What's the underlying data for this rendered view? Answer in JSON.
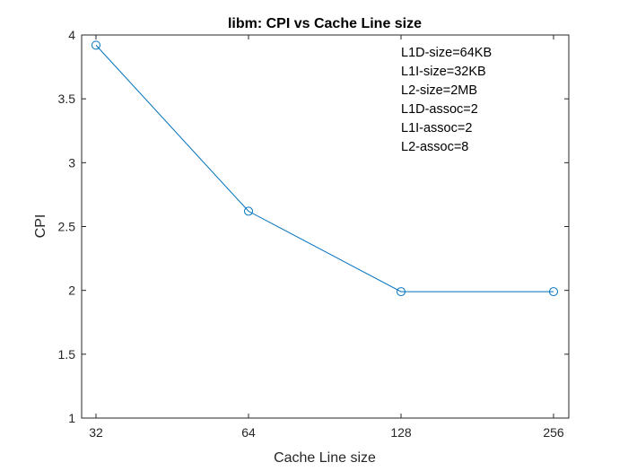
{
  "chart_data": {
    "type": "line",
    "title": "libm: CPI vs Cache Line size",
    "xlabel": "Cache Line size",
    "ylabel": "CPI",
    "x": [
      32,
      64,
      128,
      256
    ],
    "x_tick_labels": [
      "32",
      "64",
      "128",
      "256"
    ],
    "x_scale": "log2",
    "y_ticks": [
      1,
      1.5,
      2,
      2.5,
      3,
      3.5,
      4
    ],
    "y_tick_labels": [
      "1",
      "1.5",
      "2",
      "2.5",
      "3",
      "3.5",
      "4"
    ],
    "ylim": [
      1,
      4
    ],
    "grid": false,
    "marker": "circle",
    "series": [
      {
        "values": [
          3.92,
          2.62,
          1.99,
          1.99
        ],
        "color": "#0072BD"
      }
    ],
    "annotations": [
      "L1D-size=64KB",
      "L1I-size=32KB",
      "L2-size=2MB",
      "L1D-assoc=2",
      "L1I-assoc=2",
      "L2-assoc=8"
    ]
  }
}
